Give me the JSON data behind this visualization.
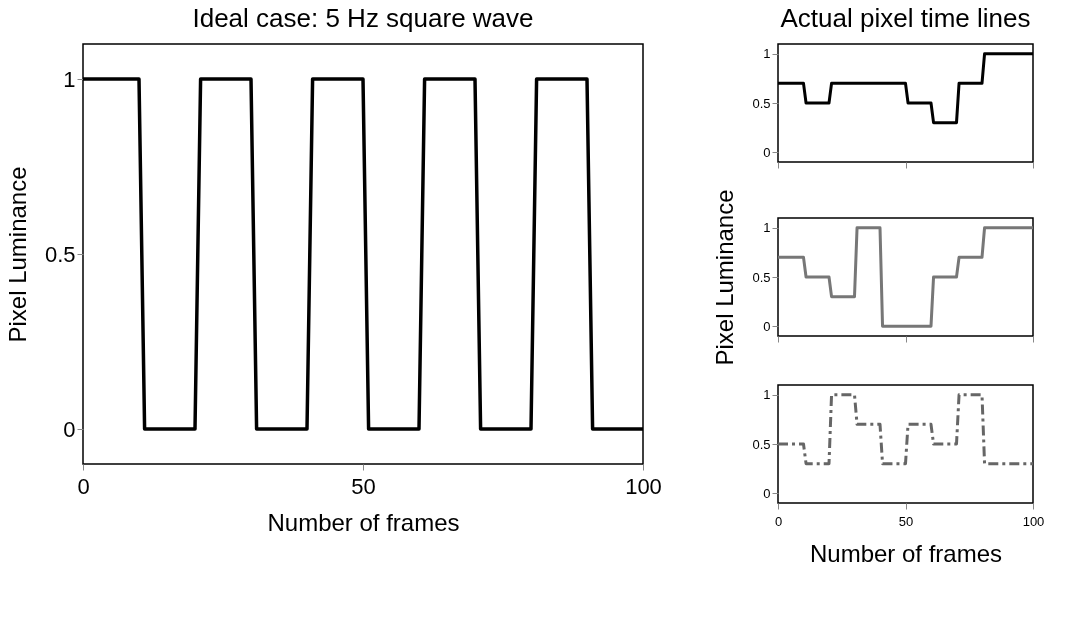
{
  "chart_data": [
    {
      "type": "line",
      "title": "Ideal case: 5 Hz square wave",
      "xlabel": "Number of frames",
      "ylabel": "Pixel Luminance",
      "xlim": [
        0,
        100
      ],
      "xticks": [
        0,
        50,
        100
      ],
      "ylim": [
        -0.1,
        1.1
      ],
      "yticks": [
        0,
        0.5,
        1
      ],
      "x": [
        0,
        10,
        11,
        20,
        21,
        30,
        31,
        40,
        41,
        50,
        51,
        60,
        61,
        70,
        71,
        80,
        81,
        90,
        91,
        100
      ],
      "series": [
        {
          "color": "#000000",
          "line_style": "solid",
          "values": [
            1,
            1,
            0,
            0,
            1,
            1,
            0,
            0,
            1,
            1,
            0,
            0,
            1,
            1,
            0,
            0,
            1,
            1,
            0,
            0
          ]
        }
      ]
    },
    {
      "type": "line",
      "title": "Actual pixel time lines",
      "xlim": [
        0,
        100
      ],
      "xticks": [
        0,
        50,
        100
      ],
      "ylim": [
        -0.1,
        1.1
      ],
      "yticks": [
        0,
        0.5,
        1
      ],
      "tick_labels": "y",
      "x": [
        0,
        10,
        11,
        20,
        21,
        50,
        51,
        60,
        61,
        70,
        71,
        80,
        81,
        100
      ],
      "series": [
        {
          "color": "#000000",
          "line_style": "solid",
          "values": [
            0.7,
            0.7,
            0.5,
            0.5,
            0.7,
            0.7,
            0.5,
            0.5,
            0.3,
            0.3,
            0.7,
            0.7,
            1,
            1
          ]
        }
      ]
    },
    {
      "type": "line",
      "ylabel": "Pixel Luminance",
      "xlim": [
        0,
        100
      ],
      "xticks": [
        0,
        50,
        100
      ],
      "ylim": [
        -0.1,
        1.1
      ],
      "yticks": [
        0,
        0.5,
        1
      ],
      "tick_labels": "y",
      "x": [
        0,
        10,
        11,
        20,
        21,
        30,
        31,
        40,
        41,
        60,
        61,
        70,
        71,
        80,
        81,
        100
      ],
      "series": [
        {
          "color": "#777777",
          "line_style": "solid",
          "values": [
            0.7,
            0.7,
            0.5,
            0.5,
            0.3,
            0.3,
            1,
            1,
            0,
            0,
            0.5,
            0.5,
            0.7,
            0.7,
            1,
            1
          ]
        }
      ]
    },
    {
      "type": "line",
      "xlabel": "Number of frames",
      "xlim": [
        0,
        100
      ],
      "xticks": [
        0,
        50,
        100
      ],
      "ylim": [
        -0.1,
        1.1
      ],
      "yticks": [
        0,
        0.5,
        1
      ],
      "x": [
        0,
        10,
        11,
        20,
        21,
        30,
        31,
        40,
        41,
        50,
        51,
        60,
        61,
        70,
        71,
        80,
        81,
        100
      ],
      "series": [
        {
          "color": "#666666",
          "line_style": "dashed",
          "values": [
            0.5,
            0.5,
            0.3,
            0.3,
            1,
            1,
            0.7,
            0.7,
            0.3,
            0.3,
            0.7,
            0.7,
            0.5,
            0.5,
            1,
            1,
            0.3,
            0.3
          ]
        }
      ]
    }
  ]
}
